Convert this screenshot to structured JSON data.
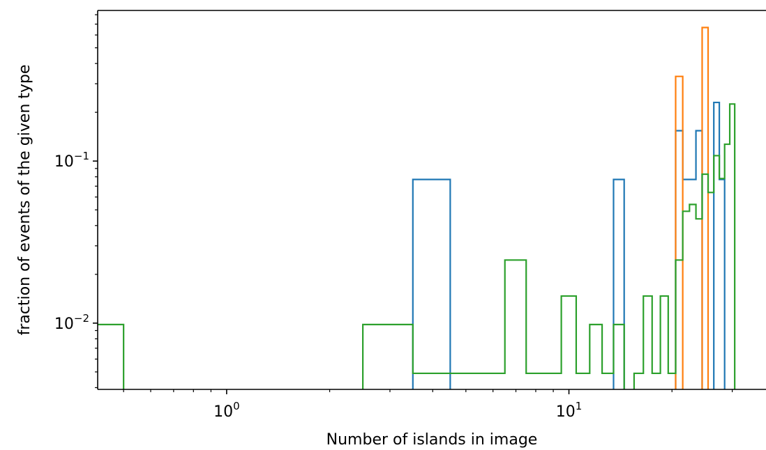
{
  "chart_data": {
    "type": "histogram-step",
    "xlabel": "Number of islands in image",
    "ylabel": "fraction of events of the given type",
    "xscale": "log",
    "yscale": "log",
    "xlim": [
      0.42,
      38
    ],
    "ylim": [
      0.0039,
      0.85
    ],
    "x_ticks": [
      {
        "value": 1,
        "base": "10",
        "exp": "0"
      },
      {
        "value": 10,
        "base": "10",
        "exp": "1"
      }
    ],
    "y_ticks": [
      {
        "value": 0.01,
        "base": "10",
        "exp": "−2"
      },
      {
        "value": 0.1,
        "base": "10",
        "exp": "−1"
      }
    ],
    "grid": false,
    "legend": "none",
    "series": [
      {
        "color": "#1f77b4",
        "bins": [
          {
            "x0": 3.5,
            "x1": 4.5,
            "y": 0.077
          },
          {
            "x0": 13.5,
            "x1": 14.5,
            "y": 0.077
          },
          {
            "x0": 20.5,
            "x1": 21.5,
            "y": 0.154
          },
          {
            "x0": 21.5,
            "x1": 23.5,
            "y": 0.077
          },
          {
            "x0": 23.5,
            "x1": 24.5,
            "y": 0.154
          },
          {
            "x0": 26.5,
            "x1": 27.5,
            "y": 0.23
          },
          {
            "x0": 27.5,
            "x1": 28.5,
            "y": 0.077
          }
        ]
      },
      {
        "color": "#ff7f0e",
        "bins": [
          {
            "x0": 20.5,
            "x1": 21.5,
            "y": 0.333
          },
          {
            "x0": 24.5,
            "x1": 25.5,
            "y": 0.667
          }
        ]
      },
      {
        "color": "#2ca02c",
        "bins": [
          {
            "x0": 0.1,
            "x1": 0.5,
            "y": 0.0098
          },
          {
            "x0": 2.5,
            "x1": 3.5,
            "y": 0.0098
          },
          {
            "x0": 3.5,
            "x1": 6.5,
            "y": 0.0049
          },
          {
            "x0": 6.5,
            "x1": 7.5,
            "y": 0.0245
          },
          {
            "x0": 7.5,
            "x1": 9.5,
            "y": 0.0049
          },
          {
            "x0": 9.5,
            "x1": 10.5,
            "y": 0.0147
          },
          {
            "x0": 10.5,
            "x1": 11.5,
            "y": 0.0049
          },
          {
            "x0": 11.5,
            "x1": 12.5,
            "y": 0.0098
          },
          {
            "x0": 12.5,
            "x1": 13.5,
            "y": 0.0049
          },
          {
            "x0": 13.5,
            "x1": 14.5,
            "y": 0.0098
          },
          {
            "x0": 15.5,
            "x1": 16.5,
            "y": 0.0049
          },
          {
            "x0": 16.5,
            "x1": 17.5,
            "y": 0.0147
          },
          {
            "x0": 17.5,
            "x1": 18.5,
            "y": 0.0049
          },
          {
            "x0": 18.5,
            "x1": 19.5,
            "y": 0.0147
          },
          {
            "x0": 19.5,
            "x1": 20.5,
            "y": 0.0049
          },
          {
            "x0": 20.5,
            "x1": 21.5,
            "y": 0.0245
          },
          {
            "x0": 21.5,
            "x1": 22.5,
            "y": 0.049
          },
          {
            "x0": 22.5,
            "x1": 23.5,
            "y": 0.054
          },
          {
            "x0": 23.5,
            "x1": 24.5,
            "y": 0.044
          },
          {
            "x0": 24.5,
            "x1": 25.5,
            "y": 0.083
          },
          {
            "x0": 25.5,
            "x1": 26.5,
            "y": 0.064
          },
          {
            "x0": 26.5,
            "x1": 27.5,
            "y": 0.108
          },
          {
            "x0": 27.5,
            "x1": 28.5,
            "y": 0.078
          },
          {
            "x0": 28.5,
            "x1": 29.5,
            "y": 0.127
          },
          {
            "x0": 29.5,
            "x1": 30.5,
            "y": 0.225
          }
        ]
      }
    ]
  }
}
